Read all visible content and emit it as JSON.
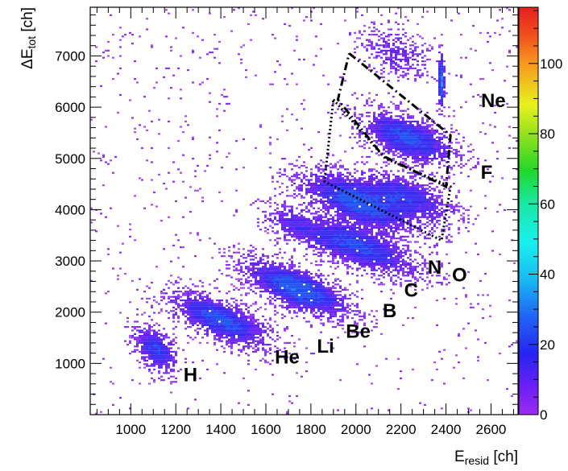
{
  "chart_data": {
    "type": "heatmap",
    "xlabel_main": "E",
    "xlabel_sub": "resid",
    "xlabel_unit": " [ch]",
    "ylabel_main": "ΔE",
    "ylabel_sub": "tot",
    "ylabel_unit": " [ch]",
    "xlim": [
      820,
      2720
    ],
    "ylim": [
      0,
      7950
    ],
    "xticks": [
      1000,
      1200,
      1400,
      1600,
      1800,
      2000,
      2200,
      2400,
      2600
    ],
    "yticks": [
      1000,
      2000,
      3000,
      4000,
      5000,
      6000,
      7000
    ],
    "colorbar": {
      "min": 0,
      "max": 116,
      "ticks": [
        0,
        20,
        40,
        60,
        80,
        100
      ]
    },
    "grid": false,
    "legend": "none",
    "element_labels": [
      {
        "text": "H",
        "x": 1265,
        "y": 750
      },
      {
        "text": "He",
        "x": 1695,
        "y": 1100
      },
      {
        "text": "Li",
        "x": 1865,
        "y": 1310
      },
      {
        "text": "Be",
        "x": 2010,
        "y": 1600
      },
      {
        "text": "B",
        "x": 2150,
        "y": 2000
      },
      {
        "text": "C",
        "x": 2245,
        "y": 2400
      },
      {
        "text": "N",
        "x": 2350,
        "y": 2850
      },
      {
        "text": "O",
        "x": 2460,
        "y": 2700
      },
      {
        "text": "F",
        "x": 2580,
        "y": 4700
      },
      {
        "text": "Ne",
        "x": 2610,
        "y": 6100
      }
    ],
    "blobs": [
      {
        "element": "H",
        "x": 1110,
        "y": 1270,
        "sx": 50,
        "sy": 230,
        "slope": -2.0,
        "weight": 22
      },
      {
        "element": "He",
        "x": 1400,
        "y": 1850,
        "sx": 120,
        "sy": 220,
        "slope": -1.7,
        "weight": 26
      },
      {
        "element": "Li",
        "x": 1740,
        "y": 2450,
        "sx": 130,
        "sy": 220,
        "slope": -1.6,
        "weight": 30
      },
      {
        "element": "Be",
        "x": 1720,
        "y": 3700,
        "sx": 70,
        "sy": 200,
        "slope": -1.6,
        "weight": 10
      },
      {
        "element": "B",
        "x": 2000,
        "y": 3300,
        "sx": 150,
        "sy": 230,
        "slope": -1.5,
        "weight": 24
      },
      {
        "element": "C",
        "x": 2010,
        "y": 4150,
        "sx": 140,
        "sy": 240,
        "slope": -1.5,
        "weight": 28
      },
      {
        "element": "N",
        "x": 2230,
        "y": 4250,
        "sx": 110,
        "sy": 220,
        "slope": -1.4,
        "weight": 18
      },
      {
        "element": "O",
        "x": 2230,
        "y": 5400,
        "sx": 110,
        "sy": 230,
        "slope": -1.4,
        "weight": 26
      },
      {
        "element": "F",
        "x": 2180,
        "y": 7050,
        "sx": 80,
        "sy": 250,
        "slope": -1.3,
        "weight": 9
      },
      {
        "element": "Ne",
        "x": 2380,
        "y": 6500,
        "sx": 8,
        "sy": 330,
        "slope": 0,
        "weight": 35
      }
    ],
    "gate_dashdot": [
      [
        1970,
        7050
      ],
      [
        2420,
        5450
      ],
      [
        2400,
        4450
      ],
      [
        2120,
        5050
      ],
      [
        1920,
        6150
      ],
      [
        1970,
        7050
      ]
    ],
    "gate_dotted": [
      [
        1900,
        6150
      ],
      [
        2130,
        5000
      ],
      [
        2420,
        4450
      ],
      [
        2380,
        3400
      ],
      [
        1860,
        4550
      ],
      [
        1900,
        6150
      ]
    ]
  }
}
